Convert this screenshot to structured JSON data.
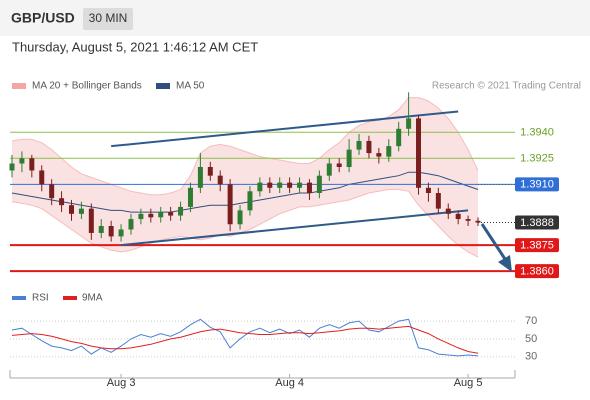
{
  "header": {
    "symbol": "GBP/USD",
    "interval": "30 MIN",
    "timestamp": "Thursday, August 5, 2021 1:46:12 AM CET"
  },
  "chart_data": [
    {
      "type": "candlestick",
      "source": "Research © 2021 Trading Central",
      "up_color": "#2e7d32",
      "down_color": "#7a1f1f",
      "candles": [
        [
          1.3918,
          1.3927,
          1.3914,
          1.3922
        ],
        [
          1.3922,
          1.3929,
          1.3917,
          1.3925
        ],
        [
          1.3925,
          1.3927,
          1.3914,
          1.3918
        ],
        [
          1.3918,
          1.3921,
          1.3906,
          1.391
        ],
        [
          1.391,
          1.3913,
          1.3898,
          1.3902
        ],
        [
          1.3902,
          1.3906,
          1.3894,
          1.3898
        ],
        [
          1.3898,
          1.3901,
          1.3889,
          1.3893
        ],
        [
          1.3893,
          1.39,
          1.389,
          1.3896
        ],
        [
          1.3896,
          1.3899,
          1.3878,
          1.3882
        ],
        [
          1.3882,
          1.389,
          1.3879,
          1.3886
        ],
        [
          1.3886,
          1.3889,
          1.3877,
          1.388
        ],
        [
          1.388,
          1.3887,
          1.3877,
          1.3884
        ],
        [
          1.3884,
          1.3893,
          1.3881,
          1.389
        ],
        [
          1.389,
          1.3896,
          1.3887,
          1.3893
        ],
        [
          1.3893,
          1.3896,
          1.3888,
          1.3891
        ],
        [
          1.3891,
          1.3897,
          1.3888,
          1.3894
        ],
        [
          1.3894,
          1.3897,
          1.3889,
          1.3892
        ],
        [
          1.3892,
          1.39,
          1.3889,
          1.3897
        ],
        [
          1.3897,
          1.3911,
          1.3894,
          1.3908
        ],
        [
          1.3908,
          1.3928,
          1.3905,
          1.392
        ],
        [
          1.392,
          1.3923,
          1.3912,
          1.3915
        ],
        [
          1.3915,
          1.3918,
          1.3906,
          1.391
        ],
        [
          1.391,
          1.3913,
          1.3883,
          1.3887
        ],
        [
          1.3887,
          1.3898,
          1.3884,
          1.3895
        ],
        [
          1.3895,
          1.3909,
          1.3892,
          1.3906
        ],
        [
          1.3906,
          1.3914,
          1.3903,
          1.3911
        ],
        [
          1.3911,
          1.3914,
          1.3905,
          1.3908
        ],
        [
          1.3908,
          1.3914,
          1.3905,
          1.3911
        ],
        [
          1.3911,
          1.3914,
          1.3905,
          1.3908
        ],
        [
          1.3908,
          1.3914,
          1.3905,
          1.3911
        ],
        [
          1.3911,
          1.3913,
          1.3901,
          1.3905
        ],
        [
          1.3905,
          1.3918,
          1.3902,
          1.3915
        ],
        [
          1.3915,
          1.3925,
          1.3912,
          1.3922
        ],
        [
          1.3922,
          1.3925,
          1.3917,
          1.392
        ],
        [
          1.392,
          1.3936,
          1.3917,
          1.393
        ],
        [
          1.393,
          1.3939,
          1.3927,
          1.3935
        ],
        [
          1.3935,
          1.3938,
          1.3925,
          1.3928
        ],
        [
          1.3928,
          1.3931,
          1.3922,
          1.3926
        ],
        [
          1.3926,
          1.3936,
          1.3923,
          1.3932
        ],
        [
          1.3932,
          1.3946,
          1.3929,
          1.3942
        ],
        [
          1.3942,
          1.3963,
          1.3938,
          1.3948
        ],
        [
          1.3948,
          1.395,
          1.3904,
          1.3908
        ],
        [
          1.3908,
          1.3911,
          1.39,
          1.3905
        ],
        [
          1.3905,
          1.3908,
          1.3893,
          1.3896
        ],
        [
          1.3896,
          1.3899,
          1.389,
          1.3893
        ],
        [
          1.3893,
          1.3895,
          1.3887,
          1.389
        ],
        [
          1.389,
          1.3892,
          1.3886,
          1.3889
        ],
        [
          1.3889,
          1.3891,
          1.3886,
          1.3888
        ]
      ],
      "series": [
        {
          "name": "MA 20 + Bollinger Bands",
          "color": "#f08c8c",
          "upper": [
            1.3935,
            1.3936,
            1.3936,
            1.3934,
            1.393,
            1.3925,
            1.392,
            1.3916,
            1.3914,
            1.3912,
            1.391,
            1.3908,
            1.3906,
            1.3905,
            1.3904,
            1.3904,
            1.3905,
            1.3907,
            1.3915,
            1.3928,
            1.3932,
            1.3933,
            1.3932,
            1.393,
            1.3928,
            1.3926,
            1.3925,
            1.3924,
            1.3923,
            1.3922,
            1.3922,
            1.3925,
            1.393,
            1.3934,
            1.394,
            1.3944,
            1.3946,
            1.3947,
            1.3949,
            1.3953,
            1.396,
            1.396,
            1.3958,
            1.3954,
            1.3948,
            1.394,
            1.393,
            1.3918
          ],
          "lower": [
            1.39,
            1.3899,
            1.3898,
            1.3896,
            1.3892,
            1.3888,
            1.3884,
            1.388,
            1.3876,
            1.3874,
            1.3872,
            1.3871,
            1.3872,
            1.3874,
            1.3876,
            1.3878,
            1.3879,
            1.388,
            1.3879,
            1.3878,
            1.3879,
            1.3881,
            1.388,
            1.3882,
            1.3884,
            1.3887,
            1.389,
            1.3893,
            1.3895,
            1.3897,
            1.3897,
            1.3898,
            1.3899,
            1.39,
            1.3901,
            1.3903,
            1.3905,
            1.3906,
            1.3907,
            1.3907,
            1.3906,
            1.3898,
            1.3892,
            1.3886,
            1.388,
            1.3875,
            1.3871,
            1.3868
          ]
        },
        {
          "name": "MA 50",
          "color": "#2f4f7f",
          "values": [
            1.3905,
            1.3904,
            1.3903,
            1.3902,
            1.3901,
            1.39,
            1.3899,
            1.3898,
            1.3897,
            1.3896,
            1.3895,
            1.3895,
            1.3894,
            1.3894,
            1.3894,
            1.3894,
            1.3894,
            1.3895,
            1.3896,
            1.3897,
            1.3898,
            1.3898,
            1.3898,
            1.3899,
            1.39,
            1.3901,
            1.3902,
            1.3903,
            1.3904,
            1.3905,
            1.3905,
            1.3906,
            1.3907,
            1.3908,
            1.391,
            1.3911,
            1.3912,
            1.3913,
            1.3914,
            1.3915,
            1.3917,
            1.3917,
            1.3916,
            1.3915,
            1.3913,
            1.3911,
            1.3909,
            1.3907
          ]
        }
      ],
      "levels": [
        {
          "value": 1.394,
          "label": "1.3940",
          "color": "#8cc04a",
          "boxed": false
        },
        {
          "value": 1.3925,
          "label": "1.3925",
          "color": "#8cc04a",
          "boxed": false
        },
        {
          "value": 1.391,
          "label": "1.3910",
          "color": "#2f6fd6",
          "boxed": true
        },
        {
          "value": 1.3888,
          "label": "1.3888",
          "color": "#333333",
          "boxed": true
        },
        {
          "value": 1.3875,
          "label": "1.3875",
          "color": "#e01818",
          "boxed": true
        },
        {
          "value": 1.386,
          "label": "1.3860",
          "color": "#e01818",
          "boxed": true
        }
      ],
      "trendlines": [
        {
          "x": [
            10,
            45
          ],
          "y": [
            1.3932,
            1.3952
          ]
        },
        {
          "x": [
            11,
            46
          ],
          "y": [
            1.3875,
            1.3895
          ]
        }
      ],
      "trend_color": "#2f5a8a",
      "ylim": [
        1.3852,
        1.3973
      ],
      "xticks": [
        {
          "value": 11,
          "label": "Aug 3"
        },
        {
          "value": 28,
          "label": "Aug 4"
        },
        {
          "value": 46,
          "label": "Aug 5"
        }
      ]
    },
    {
      "type": "line",
      "series": [
        {
          "name": "RSI",
          "color": "#4a7fd4",
          "values": [
            60,
            62,
            55,
            48,
            42,
            40,
            37,
            42,
            33,
            40,
            35,
            42,
            50,
            55,
            52,
            56,
            53,
            58,
            66,
            72,
            63,
            58,
            40,
            50,
            58,
            62,
            57,
            61,
            56,
            60,
            52,
            62,
            66,
            62,
            68,
            70,
            60,
            58,
            64,
            70,
            72,
            40,
            38,
            33,
            32,
            31,
            32,
            31
          ]
        },
        {
          "name": "9MA",
          "color": "#e02020",
          "values": [
            54,
            55,
            56,
            55,
            53,
            50,
            47,
            45,
            42,
            40,
            39,
            39,
            40,
            42,
            44,
            47,
            50,
            52,
            55,
            58,
            60,
            61,
            59,
            57,
            56,
            55,
            55,
            56,
            57,
            57,
            56,
            57,
            58,
            59,
            61,
            62,
            62,
            61,
            62,
            63,
            64,
            60,
            56,
            50,
            45,
            40,
            36,
            34
          ]
        }
      ],
      "ylim": [
        13,
        88
      ],
      "yticks": [
        70,
        50,
        30
      ]
    }
  ]
}
